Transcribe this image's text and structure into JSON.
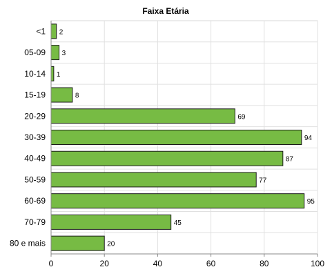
{
  "chart_data": {
    "type": "bar",
    "orientation": "horizontal",
    "title": "Faixa Etária",
    "xlabel": "",
    "ylabel": "",
    "categories": [
      "<1",
      "05-09",
      "10-14",
      "15-19",
      "20-29",
      "30-39",
      "40-49",
      "50-59",
      "60-69",
      "70-79",
      "80 e mais"
    ],
    "values": [
      2,
      3,
      1,
      8,
      69,
      94,
      87,
      77,
      95,
      45,
      20
    ],
    "xlim": [
      0,
      100
    ],
    "xticks": [
      0,
      20,
      40,
      60,
      80,
      100
    ],
    "grid": true,
    "legend": "none",
    "colors": {
      "bar_fill": "#77bb44",
      "bar_stroke": "#1a1a1a",
      "grid": "#e0e0e0",
      "axis": "#888888"
    }
  }
}
